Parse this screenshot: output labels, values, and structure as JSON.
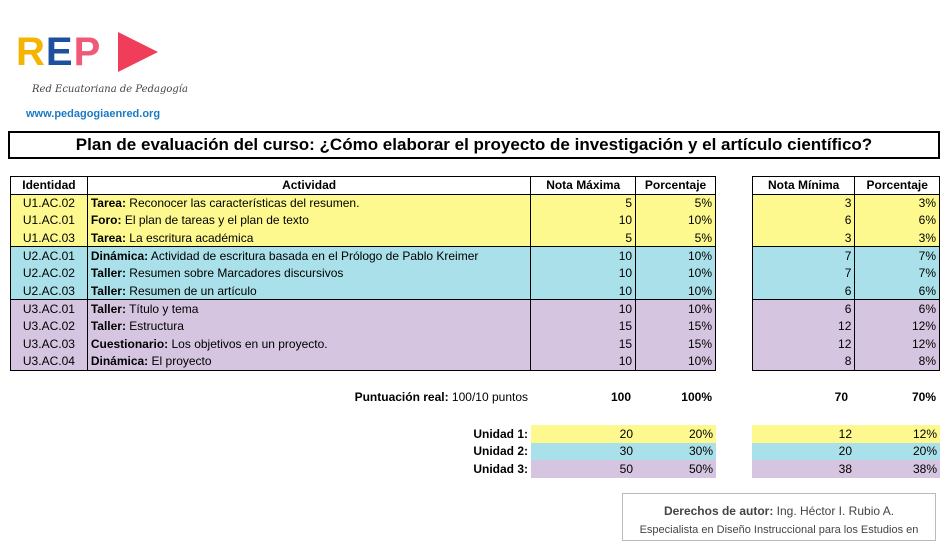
{
  "logo": {
    "letters": [
      "R",
      "E",
      "P"
    ],
    "subtitle": "Red Ecuatoriana de Pedagogía",
    "url": "www.pedagogiaenred.org"
  },
  "title": "Plan de evaluación del curso: ¿Cómo elaborar el proyecto de investigación y el artículo científico?",
  "headers": {
    "id": "Identidad",
    "activity": "Actividad",
    "max": "Nota Máxima",
    "pct": "Porcentaje",
    "min": "Nota Mínima",
    "pct2": "Porcentaje"
  },
  "rows": [
    {
      "id": "U1.AC.02",
      "type": "Tarea:",
      "desc": " Reconocer las características del resumen.",
      "max": "5",
      "pct": "5%",
      "min": "3",
      "pct2": "3%"
    },
    {
      "id": "U1.AC.01",
      "type": "Foro:",
      "desc": " El plan de tareas y el plan de texto",
      "max": "10",
      "pct": "10%",
      "min": "6",
      "pct2": "6%"
    },
    {
      "id": "U1.AC.03",
      "type": "Tarea:",
      "desc": " La escritura académica",
      "max": "5",
      "pct": "5%",
      "min": "3",
      "pct2": "3%"
    },
    {
      "id": "U2.AC.01",
      "type": "Dinámica:",
      "desc": " Actividad de escritura basada en el Prólogo de Pablo Kreimer",
      "max": "10",
      "pct": "10%",
      "min": "7",
      "pct2": "7%"
    },
    {
      "id": "U2.AC.02",
      "type": "Taller:",
      "desc": " Resumen sobre Marcadores discursivos",
      "max": "10",
      "pct": "10%",
      "min": "7",
      "pct2": "7%"
    },
    {
      "id": "U2.AC.03",
      "type": "Taller:",
      "desc": " Resumen de un artículo",
      "max": "10",
      "pct": "10%",
      "min": "6",
      "pct2": "6%"
    },
    {
      "id": "U3.AC.01",
      "type": "Taller:",
      "desc": " Título y tema",
      "max": "10",
      "pct": "10%",
      "min": "6",
      "pct2": "6%"
    },
    {
      "id": "U3.AC.02",
      "type": "Taller:",
      "desc": " Estructura",
      "max": "15",
      "pct": "15%",
      "min": "12",
      "pct2": "12%"
    },
    {
      "id": "U3.AC.03",
      "type": "Cuestionario:",
      "desc": " Los objetivos en un proyecto.",
      "max": "15",
      "pct": "15%",
      "min": "12",
      "pct2": "12%"
    },
    {
      "id": "U3.AC.04",
      "type": "Dinámica:",
      "desc": " El proyecto",
      "max": "10",
      "pct": "10%",
      "min": "8",
      "pct2": "8%"
    }
  ],
  "total": {
    "label": "Puntuación real:",
    "value": " 100/10 puntos",
    "max": "100",
    "pct": "100%",
    "min": "70",
    "pct2": "70%"
  },
  "units": [
    {
      "label": "Unidad 1:",
      "max": "20",
      "pct": "20%",
      "min": "12",
      "pct2": "12%"
    },
    {
      "label": "Unidad 2:",
      "max": "30",
      "pct": "30%",
      "min": "20",
      "pct2": "20%"
    },
    {
      "label": "Unidad 3:",
      "max": "50",
      "pct": "50%",
      "min": "38",
      "pct2": "38%"
    }
  ],
  "copyright": {
    "label": "Derechos de autor:",
    "name": " Ing. Héctor I. Rubio A.",
    "line2": "Especialista en Diseño Instruccional para los Estudios en"
  },
  "colors": {
    "unit1": "#fdf98f",
    "unit2": "#aae0e9",
    "unit3": "#d5c5e0"
  }
}
